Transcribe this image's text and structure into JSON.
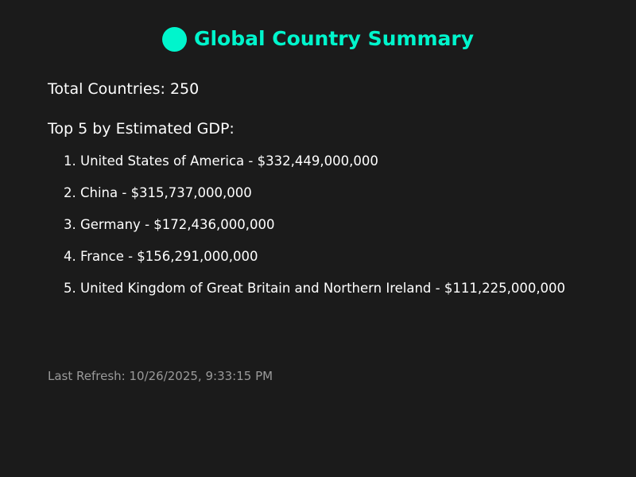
{
  "header": {
    "title": "Global Country Summary",
    "icon": "globe-icon",
    "accent_color": "#00f5cc"
  },
  "summary": {
    "total_countries": "Total Countries: 250",
    "top_heading": "Top 5 by Estimated GDP:"
  },
  "gdp_list": [
    "1. United States of America - $332,449,000,000",
    "2. China - $315,737,000,000",
    "3. Germany - $172,436,000,000",
    "4. France - $156,291,000,000",
    "5. United Kingdom of Great Britain and Northern Ireland - $111,225,000,000"
  ],
  "footer": {
    "last_refresh": "Last Refresh: 10/26/2025, 9:33:15 PM"
  }
}
